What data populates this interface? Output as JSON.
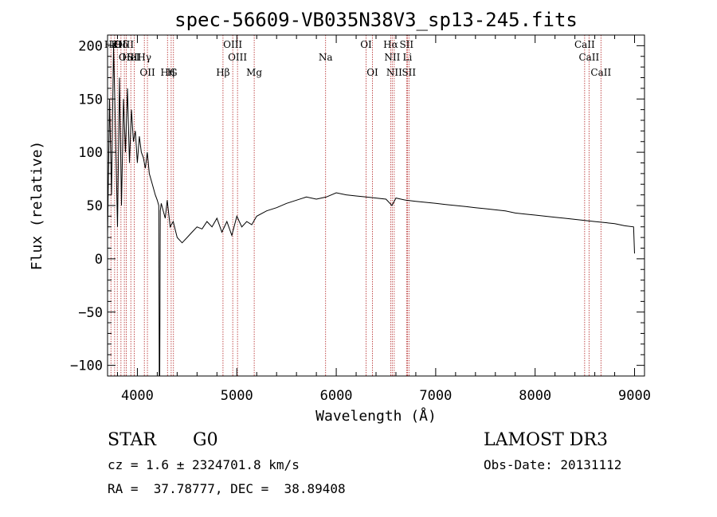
{
  "chart_data": {
    "type": "line",
    "title": "spec-56609-VB035N38V3_sp13-245.fits",
    "xlabel": "Wavelength (Å)",
    "ylabel": "Flux (relative)",
    "xlim": [
      3700,
      9100
    ],
    "ylim": [
      -110,
      210
    ],
    "xticks": [
      4000,
      5000,
      6000,
      7000,
      8000,
      9000
    ],
    "yticks": [
      -100,
      -50,
      0,
      50,
      100,
      150,
      200
    ],
    "xtick_labels": [
      "4000",
      "5000",
      "6000",
      "7000",
      "8000",
      "9000"
    ],
    "ytick_labels": [
      "−100",
      "−50",
      "0",
      "50",
      "100",
      "150",
      "200"
    ],
    "series": [
      {
        "name": "flux",
        "x": [
          3700,
          3720,
          3740,
          3760,
          3780,
          3800,
          3820,
          3840,
          3860,
          3880,
          3900,
          3920,
          3940,
          3960,
          3980,
          4000,
          4020,
          4040,
          4060,
          4080,
          4100,
          4120,
          4150,
          4180,
          4200,
          4215,
          4220,
          4225,
          4230,
          4240,
          4260,
          4280,
          4300,
          4330,
          4360,
          4400,
          4450,
          4500,
          4550,
          4600,
          4650,
          4700,
          4750,
          4800,
          4850,
          4900,
          4950,
          5000,
          5050,
          5100,
          5150,
          5200,
          5300,
          5400,
          5500,
          5600,
          5700,
          5800,
          5900,
          6000,
          6100,
          6200,
          6300,
          6400,
          6500,
          6560,
          6600,
          6700,
          6800,
          6900,
          7000,
          7100,
          7200,
          7300,
          7400,
          7500,
          7600,
          7700,
          7800,
          7900,
          8000,
          8100,
          8200,
          8300,
          8400,
          8500,
          8600,
          8700,
          8800,
          8900,
          8990,
          9000
        ],
        "y": [
          20,
          150,
          60,
          200,
          120,
          30,
          170,
          50,
          150,
          100,
          160,
          90,
          140,
          110,
          120,
          90,
          115,
          100,
          95,
          85,
          100,
          80,
          70,
          60,
          55,
          50,
          -110,
          -110,
          45,
          52,
          45,
          38,
          55,
          30,
          35,
          20,
          15,
          20,
          25,
          30,
          28,
          35,
          30,
          38,
          25,
          35,
          22,
          40,
          30,
          35,
          32,
          40,
          45,
          48,
          52,
          55,
          58,
          56,
          58,
          62,
          60,
          59,
          58,
          57,
          56,
          50,
          57,
          55,
          54,
          53,
          52,
          51,
          50,
          49,
          48,
          47,
          46,
          45,
          43,
          42,
          41,
          40,
          39,
          38,
          37,
          36,
          35,
          34,
          33,
          31,
          30,
          5
        ]
      }
    ],
    "lines": [
      {
        "name": "Hε",
        "x": 3734,
        "row": 0,
        "label": "Hε"
      },
      {
        "name": "K",
        "x": 3771,
        "row": 0,
        "label": "K"
      },
      {
        "name": "H",
        "x": 3798,
        "row": 0,
        "label": "H"
      },
      {
        "name": "Hδ",
        "x": 3835,
        "row": 0,
        "label": "Hδ"
      },
      {
        "name": "OIII-a",
        "x": 3869,
        "row": 0,
        "label": "OIII"
      },
      {
        "name": "OII-a",
        "x": 3889,
        "row": 1,
        "label": "OII"
      },
      {
        "name": "HeI",
        "x": 3934,
        "row": 1,
        "label": "HeI"
      },
      {
        "name": "SII-a",
        "x": 3969,
        "row": 1,
        "label": "SII"
      },
      {
        "name": "Hγ",
        "x": 4070,
        "row": 1,
        "label": "Hγ"
      },
      {
        "name": "OII-b",
        "x": 4101,
        "row": 2,
        "label": "OII"
      },
      {
        "name": "Hη",
        "x": 4303,
        "row": 2,
        "label": "Hη"
      },
      {
        "name": "H-b",
        "x": 4340,
        "row": 2,
        "label": "H"
      },
      {
        "name": "G",
        "x": 4363,
        "row": 2,
        "label": "G"
      },
      {
        "name": "Hβ",
        "x": 4861,
        "row": 2,
        "label": "Hβ"
      },
      {
        "name": "OIII-b",
        "x": 4959,
        "row": 0,
        "label": "OIII"
      },
      {
        "name": "OIII-c",
        "x": 5007,
        "row": 1,
        "label": "OIII"
      },
      {
        "name": "Mg",
        "x": 5175,
        "row": 2,
        "label": "Mg"
      },
      {
        "name": "Na",
        "x": 5893,
        "row": 1,
        "label": "Na"
      },
      {
        "name": "OI-a",
        "x": 6300,
        "row": 0,
        "label": "OI"
      },
      {
        "name": "OI-b",
        "x": 6364,
        "row": 2,
        "label": "OI"
      },
      {
        "name": "Hα",
        "x": 6548,
        "row": 0,
        "label": "Hα"
      },
      {
        "name": "NII-a",
        "x": 6563,
        "row": 1,
        "label": "NII"
      },
      {
        "name": "NII-b",
        "x": 6583,
        "row": 2,
        "label": "NII"
      },
      {
        "name": "SII-b",
        "x": 6707,
        "row": 0,
        "label": "SII"
      },
      {
        "name": "Li",
        "x": 6716,
        "row": 1,
        "label": "Li"
      },
      {
        "name": "SII-c",
        "x": 6731,
        "row": 2,
        "label": "SII"
      },
      {
        "name": "CaII-a",
        "x": 8498,
        "row": 0,
        "label": "CaII"
      },
      {
        "name": "CaII-b",
        "x": 8542,
        "row": 1,
        "label": "CaII"
      },
      {
        "name": "CaII-c",
        "x": 8662,
        "row": 2,
        "label": "CaII"
      }
    ]
  },
  "info": {
    "object_type": "STAR",
    "subclass": "G0",
    "survey": "LAMOST DR3",
    "cz": "cz = 1.6 ± 2324701.8 km/s",
    "obs_date": "Obs-Date: 20131112",
    "coords": "RA =  37.78777, DEC =  38.89408"
  },
  "colors": {
    "axis": "#000000",
    "spectrum": "#000000",
    "line_marker": "#b22222"
  }
}
